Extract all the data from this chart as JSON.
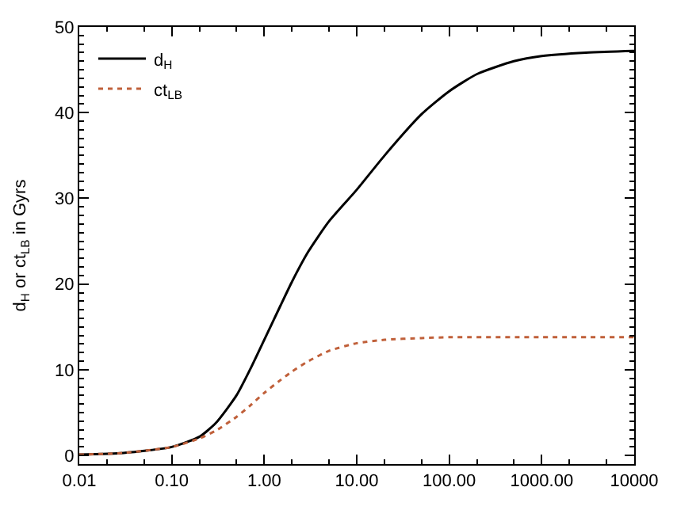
{
  "chart_data": {
    "type": "line",
    "ylabel": "d$_{H}$ or ct$_{LB}$ in Gyrs",
    "log": "x",
    "xlim": [
      0.01,
      10000
    ],
    "xticks": [
      {
        "value": 0.01,
        "label": "0.01"
      },
      {
        "value": 0.1,
        "label": "0.10"
      },
      {
        "value": 1,
        "label": "1.00"
      },
      {
        "value": 10,
        "label": "10.00"
      },
      {
        "value": 100,
        "label": "100.00"
      },
      {
        "value": 1000,
        "label": "1000.00"
      },
      {
        "value": 10000,
        "label": "10000"
      }
    ],
    "ylim": [
      -1,
      50
    ],
    "yticks": [
      0,
      10,
      20,
      30,
      40,
      50
    ],
    "legend": "top left",
    "series": [
      {
        "name": "d$_{H}$",
        "color": "#000000",
        "line_style": "solid",
        "x": [
          0.01,
          0.03,
          0.1,
          0.2,
          0.3,
          0.5,
          0.7,
          1,
          1.5,
          2,
          3,
          5,
          10,
          20,
          50,
          100,
          200,
          500,
          1000,
          3000,
          10000
        ],
        "values": [
          0.1,
          0.3,
          1.0,
          2.2,
          3.8,
          7,
          10,
          13.5,
          17.5,
          20.3,
          23.8,
          27.3,
          31,
          35,
          39.8,
          42.5,
          44.5,
          46,
          46.6,
          47,
          47.2
        ]
      },
      {
        "name": "ct$_{LB}$",
        "color": "#c0603a",
        "line_style": "dotted",
        "x": [
          0.01,
          0.03,
          0.1,
          0.2,
          0.3,
          0.5,
          0.7,
          1,
          1.5,
          2,
          3,
          5,
          10,
          20,
          50,
          100,
          1000,
          10000
        ],
        "values": [
          0.1,
          0.3,
          1.0,
          2.0,
          2.9,
          4.5,
          5.8,
          7.3,
          8.8,
          9.8,
          11,
          12.2,
          13.1,
          13.5,
          13.7,
          13.8,
          13.8,
          13.8
        ]
      }
    ]
  }
}
